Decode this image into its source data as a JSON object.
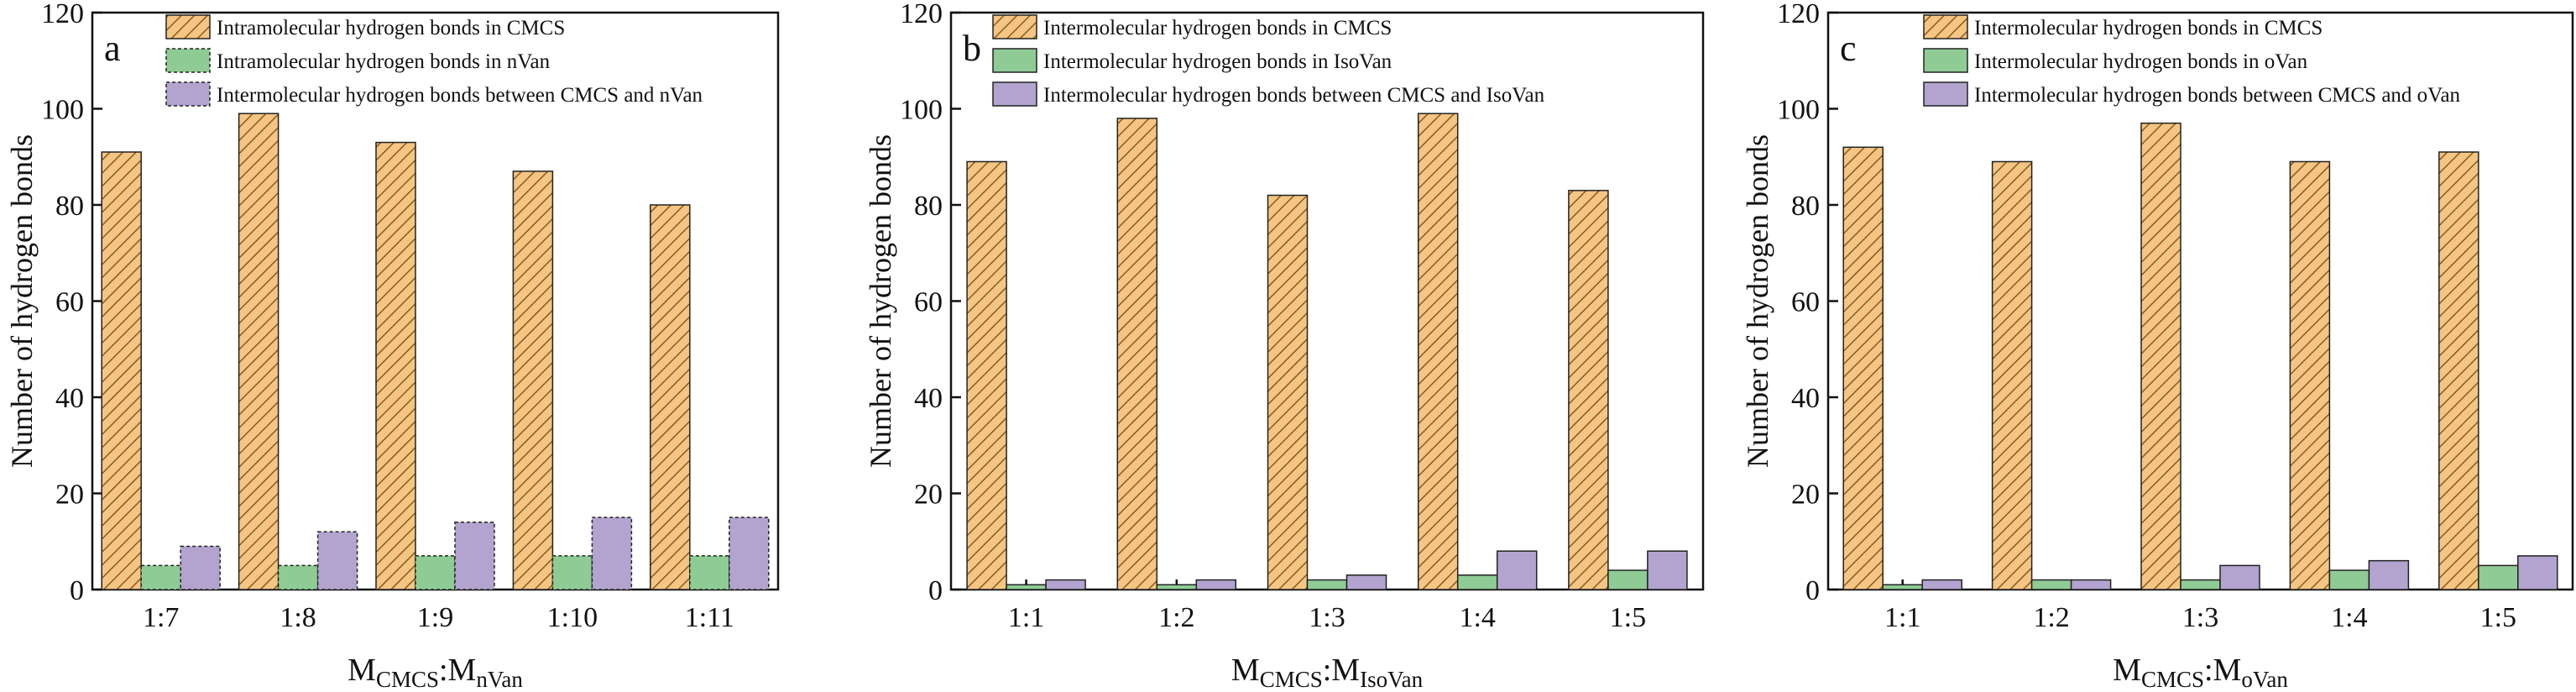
{
  "chart_data": [
    {
      "type": "bar",
      "panel_label": "a",
      "categories": [
        "1:7",
        "1:8",
        "1:9",
        "1:10",
        "1:11"
      ],
      "series": [
        {
          "name": "Intramolecular hydrogen bonds in CMCS",
          "values": [
            91,
            99,
            93,
            87,
            80
          ]
        },
        {
          "name": "Intramolecular hydrogen bonds in nVan",
          "values": [
            5,
            5,
            7,
            7,
            7
          ]
        },
        {
          "name": "Intermolecular hydrogen bonds between CMCS and nVan",
          "values": [
            9,
            12,
            14,
            15,
            15
          ]
        }
      ],
      "ylabel": "Number of hydrogen bonds",
      "xlabel": {
        "base1": "M",
        "sub1": "CMCS",
        "sep": ":",
        "base2": "M",
        "sub2": "nVan"
      },
      "ylim": [
        0,
        120
      ],
      "yticks": [
        0,
        20,
        40,
        60,
        80,
        100,
        120
      ],
      "legend": "top-right",
      "grid": false
    },
    {
      "type": "bar",
      "panel_label": "b",
      "categories": [
        "1:1",
        "1:2",
        "1:3",
        "1:4",
        "1:5"
      ],
      "series": [
        {
          "name": "Intermolecular hydrogen bonds in CMCS",
          "values": [
            89,
            98,
            82,
            99,
            83
          ]
        },
        {
          "name": "Intermolecular hydrogen bonds in IsoVan",
          "values": [
            1,
            1,
            2,
            3,
            4
          ]
        },
        {
          "name": "Intermolecular hydrogen bonds between CMCS and IsoVan",
          "values": [
            2,
            2,
            3,
            8,
            8
          ]
        }
      ],
      "ylabel": "Number of hydrogen bonds",
      "xlabel": {
        "base1": "M",
        "sub1": "CMCS",
        "sep": ":",
        "base2": "M",
        "sub2": "IsoVan"
      },
      "ylim": [
        0,
        120
      ],
      "yticks": [
        0,
        20,
        40,
        60,
        80,
        100,
        120
      ],
      "legend": "top-right",
      "grid": false
    },
    {
      "type": "bar",
      "panel_label": "c",
      "categories": [
        "1:1",
        "1:2",
        "1:3",
        "1:4",
        "1:5"
      ],
      "series": [
        {
          "name": "Intermolecular hydrogen bonds in CMCS",
          "values": [
            92,
            89,
            97,
            89,
            91
          ]
        },
        {
          "name": "Intermolecular hydrogen bonds in oVan",
          "values": [
            1,
            2,
            2,
            4,
            5
          ]
        },
        {
          "name": "Intermolecular hydrogen bonds between CMCS and oVan",
          "values": [
            2,
            2,
            5,
            6,
            7
          ]
        }
      ],
      "ylabel": "Number of hydrogen bonds",
      "xlabel": {
        "base1": "M",
        "sub1": "CMCS",
        "sep": ":",
        "base2": "M",
        "sub2": "oVan"
      },
      "ylim": [
        0,
        120
      ],
      "yticks": [
        0,
        20,
        40,
        60,
        80,
        100,
        120
      ],
      "legend": "top-right",
      "grid": false
    }
  ],
  "colors": {
    "series_fills": [
      "#f5c583",
      "#8fcc95",
      "#b3a3cf"
    ],
    "hatch_stroke": "#8a5a1e",
    "axis": "#111111"
  }
}
